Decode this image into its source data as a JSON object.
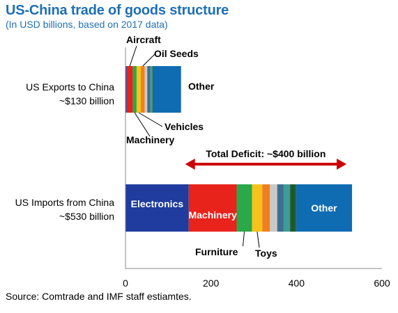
{
  "header": {
    "title": "US-China trade of goods structure",
    "subtitle": "(In USD billions, based on 2017 data)"
  },
  "source": "Source: Comtrade and IMF staff estiamtes.",
  "chart_data": {
    "type": "bar",
    "orientation": "horizontal",
    "stacked": true,
    "xlim": [
      0,
      600
    ],
    "xticks": [
      0,
      200,
      400,
      600
    ],
    "grid": false,
    "rows": [
      {
        "label_lines": [
          "US Exports to China",
          "~$130 billion"
        ],
        "segments": [
          {
            "label": "",
            "value": 3,
            "color": "#1f3c9e"
          },
          {
            "label": "Aircraft",
            "value": 14,
            "color": "#e8231b"
          },
          {
            "label": "Machinery",
            "value": 9,
            "color": "#2aa84a"
          },
          {
            "label": "Vehicles",
            "value": 10,
            "color": "#f7c21a"
          },
          {
            "label": "Oil Seeds",
            "value": 9,
            "color": "#f07f1d"
          },
          {
            "label": "",
            "value": 6,
            "color": "#c9c9c9"
          },
          {
            "label": "",
            "value": 7,
            "color": "#3e6f8f"
          },
          {
            "label": "",
            "value": 5,
            "color": "#3f9b99"
          },
          {
            "label": "",
            "value": 2,
            "color": "#1d5a2b"
          },
          {
            "label": "Other",
            "value": 65,
            "color": "#0f6cb3"
          }
        ]
      },
      {
        "label_lines": [
          "US Imports from China",
          "~$530 billion"
        ],
        "segments": [
          {
            "label": "Electronics",
            "value": 148,
            "color": "#1f3c9e"
          },
          {
            "label": "Machinery",
            "value": 112,
            "color": "#e8231b"
          },
          {
            "label": "Furniture",
            "value": 36,
            "color": "#2aa84a"
          },
          {
            "label": "Toys",
            "value": 24,
            "color": "#f7c21a"
          },
          {
            "label": "",
            "value": 18,
            "color": "#f07f1d"
          },
          {
            "label": "",
            "value": 17,
            "color": "#c9c9c9"
          },
          {
            "label": "",
            "value": 15,
            "color": "#3e6f8f"
          },
          {
            "label": "",
            "value": 15,
            "color": "#3f9b99"
          },
          {
            "label": "",
            "value": 14,
            "color": "#1d5a2b"
          },
          {
            "label": "Other",
            "value": 131,
            "color": "#0f6cb3"
          }
        ]
      }
    ],
    "annotations": [
      {
        "text": "Total Deficit:  ~$400 billion",
        "color": "#cc0000",
        "from": 130,
        "to": 530
      }
    ]
  }
}
